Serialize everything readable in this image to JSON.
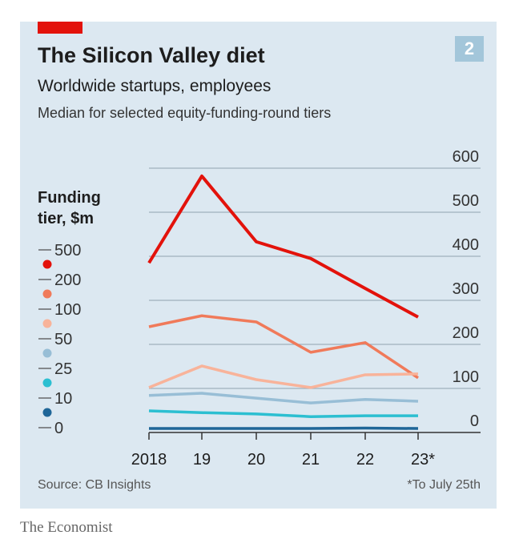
{
  "badge": "2",
  "chart_data": {
    "type": "line",
    "title": "The Silicon Valley diet",
    "subtitle": "Worldwide startups, employees",
    "subtitle2": "Median for selected equity-funding-round tiers",
    "xlabel": "",
    "ylabel": "",
    "x": [
      "2018",
      "19",
      "20",
      "21",
      "22",
      "23*"
    ],
    "yticks": [
      "0",
      "100",
      "200",
      "300",
      "400",
      "500",
      "600"
    ],
    "ylim": [
      0,
      600
    ],
    "grid": true,
    "legend_title": "Funding tier, $m",
    "legend_bounds": [
      "500",
      "200",
      "100",
      "50",
      "25",
      "10",
      "0"
    ],
    "legend_placement": "left",
    "series": [
      {
        "name": "200-500",
        "color": "#e3120b",
        "values": [
          385,
          582,
          433,
          395,
          327,
          262
        ]
      },
      {
        "name": "100-200",
        "color": "#f07a5a",
        "values": [
          240,
          265,
          251,
          182,
          204,
          124
        ]
      },
      {
        "name": "50-100",
        "color": "#f8b39a",
        "values": [
          102,
          151,
          120,
          102,
          131,
          133
        ]
      },
      {
        "name": "25-50",
        "color": "#98bed6",
        "values": [
          84,
          89,
          78,
          67,
          75,
          71
        ]
      },
      {
        "name": "10-25",
        "color": "#2cbfd1",
        "values": [
          49,
          45,
          42,
          36,
          38,
          38
        ]
      },
      {
        "name": "0-10",
        "color": "#1f6698",
        "values": [
          9,
          9,
          9,
          9,
          10,
          9
        ]
      }
    ],
    "source": "Source: CB Insights",
    "note": "*To July 25th"
  },
  "brand": "The Economist"
}
